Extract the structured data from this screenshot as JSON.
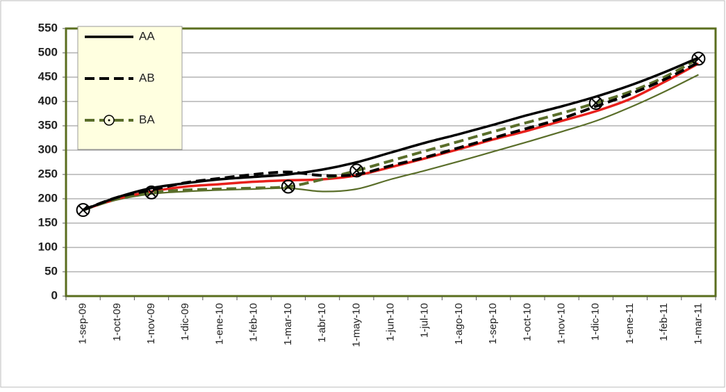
{
  "chart_data": {
    "type": "line",
    "categories": [
      "1-sep-09",
      "1-oct-09",
      "1-nov-09",
      "1-dic-09",
      "1-ene-10",
      "1-feb-10",
      "1-mar-10",
      "1-abr-10",
      "1-may-10",
      "1-jun-10",
      "1-jul-10",
      "1-ago-10",
      "1-sep-10",
      "1-oct-10",
      "1-nov-10",
      "1-dic-10",
      "1-ene-11",
      "1-feb-11",
      "1-mar-11"
    ],
    "ylim": [
      0,
      550
    ],
    "yticks": [
      0,
      50,
      100,
      150,
      200,
      250,
      300,
      350,
      400,
      450,
      500,
      550
    ],
    "grid": true,
    "legend": "top-left",
    "series": [
      {
        "name": "AA",
        "color": "#000000",
        "dash": "solid",
        "values": [
          177,
          203,
          222,
          232,
          240,
          245,
          250,
          260,
          275,
          295,
          315,
          333,
          352,
          372,
          390,
          410,
          433,
          460,
          490
        ]
      },
      {
        "name": "AB",
        "color": "#000000",
        "dash": "dashed",
        "values": [
          177,
          203,
          218,
          233,
          242,
          250,
          255,
          248,
          250,
          268,
          285,
          305,
          325,
          345,
          365,
          390,
          415,
          445,
          480
        ]
      },
      {
        "name": "BA",
        "color": "#5a6e2a",
        "dash": "dashed",
        "values": [
          177,
          200,
          213,
          218,
          220,
          222,
          225,
          240,
          258,
          278,
          298,
          318,
          338,
          357,
          376,
          397,
          420,
          450,
          488
        ]
      },
      {
        "color": "#e8201c",
        "dash": "solid",
        "values": [
          177,
          200,
          215,
          225,
          230,
          235,
          238,
          240,
          248,
          265,
          283,
          302,
          322,
          340,
          360,
          380,
          405,
          440,
          478
        ]
      },
      {
        "color": "#5a6e2a",
        "dash": "thin",
        "values": [
          177,
          198,
          210,
          215,
          218,
          220,
          222,
          215,
          220,
          240,
          258,
          277,
          297,
          317,
          338,
          360,
          388,
          420,
          455
        ]
      },
      {
        "color": "#000000",
        "dash": "none",
        "marker": "circle-x",
        "values": [
          177,
          null,
          213,
          null,
          null,
          null,
          225,
          null,
          258,
          null,
          null,
          null,
          null,
          null,
          null,
          397,
          null,
          null,
          488
        ]
      }
    ]
  }
}
